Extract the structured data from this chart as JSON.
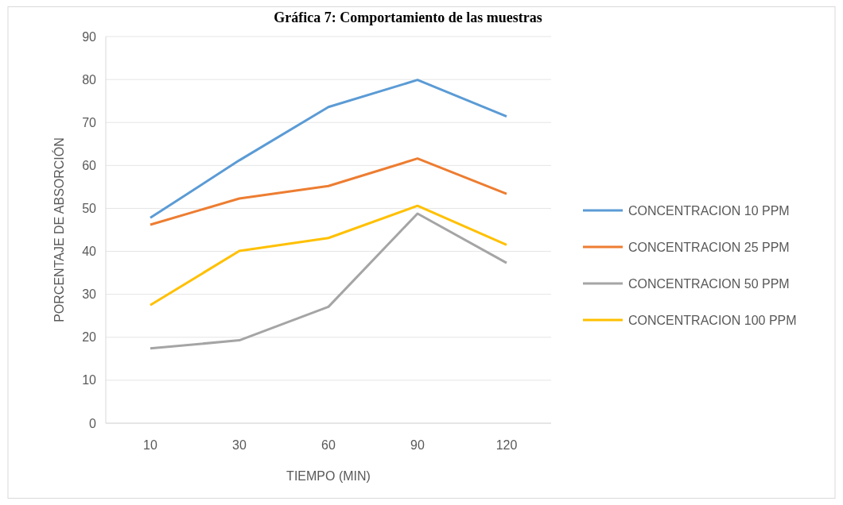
{
  "chart_data": {
    "type": "line",
    "title": "Gráfica 7: Comportamiento de las muestras",
    "xlabel": "TIEMPO (MIN)",
    "ylabel": "PORCENTAJE DE ABSORCIÓN",
    "categories": [
      "10",
      "30",
      "60",
      "90",
      "120"
    ],
    "series": [
      {
        "name": "CONCENTRACION 10 PPM",
        "color": "#5b9bd5",
        "values": [
          47.8,
          61.2,
          73.6,
          79.9,
          71.4
        ]
      },
      {
        "name": "CONCENTRACION 25 PPM",
        "color": "#ed7d31",
        "values": [
          46.2,
          52.3,
          55.2,
          61.6,
          53.4
        ]
      },
      {
        "name": "CONCENTRACION 50 PPM",
        "color": "#a5a5a5",
        "values": [
          17.4,
          19.3,
          27.1,
          48.8,
          37.3
        ]
      },
      {
        "name": "CONCENTRACION 100 PPM",
        "color": "#ffc000",
        "values": [
          27.5,
          40.1,
          43.1,
          50.6,
          41.5
        ]
      }
    ],
    "ylim": [
      0,
      90
    ],
    "yticks": [
      0,
      10,
      20,
      30,
      40,
      50,
      60,
      70,
      80,
      90
    ],
    "grid": "y",
    "legend": "right",
    "marker": "none",
    "line_style": "solid"
  }
}
